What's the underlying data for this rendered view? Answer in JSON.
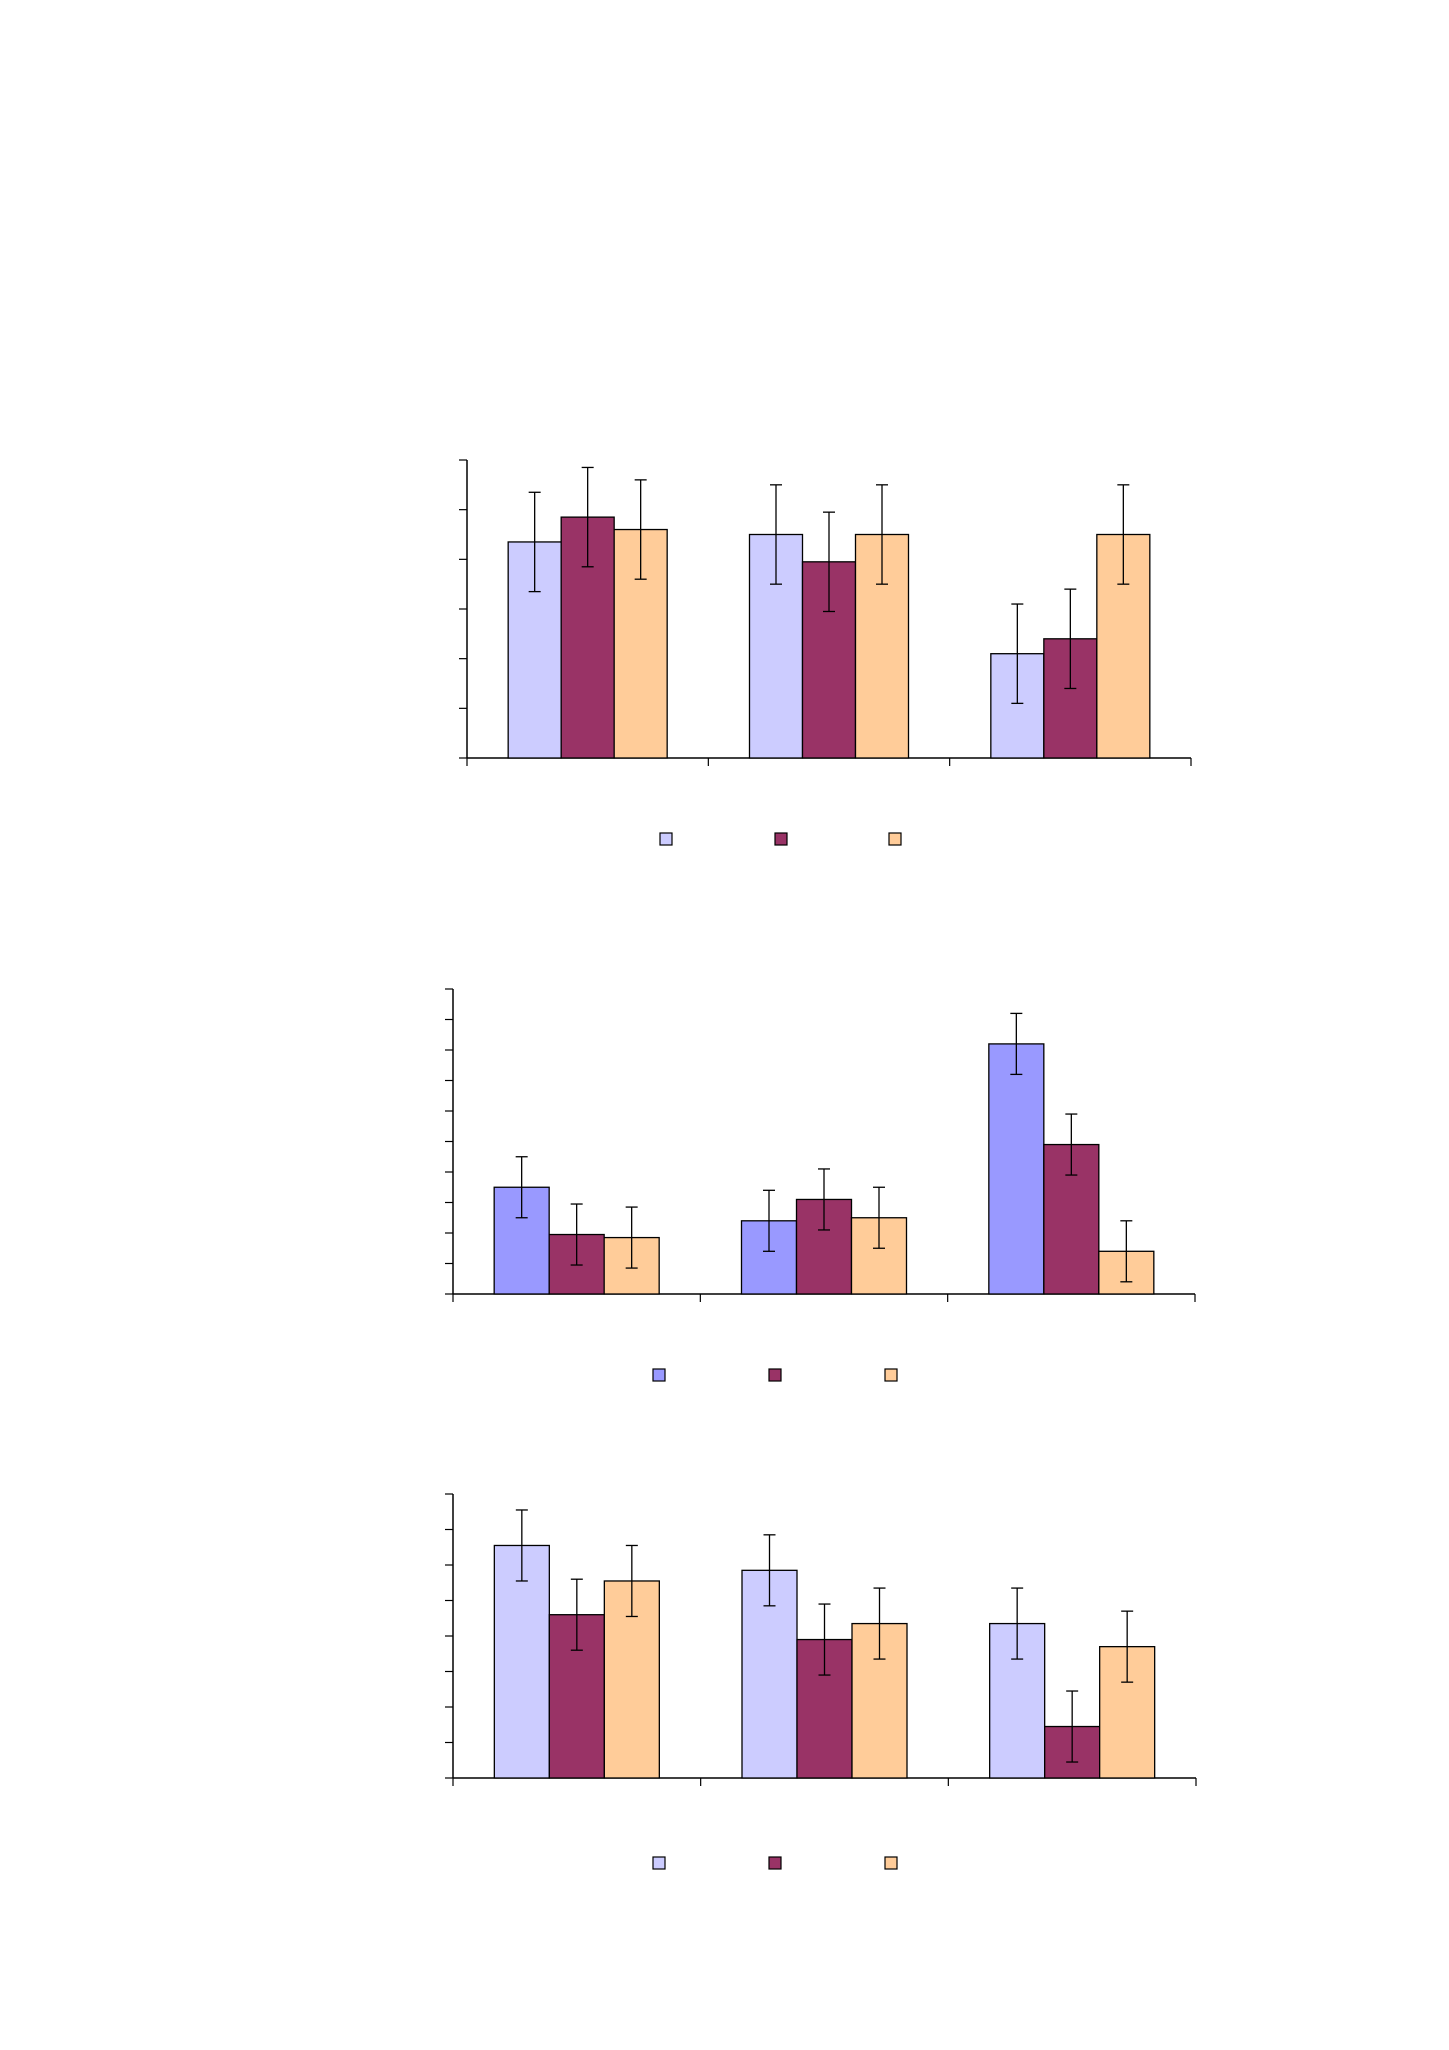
{
  "colors": {
    "lavender": "#CCCCFF",
    "periwinkle": "#9999FF",
    "plum": "#993366",
    "peach": "#FFCC99",
    "axis": "#000000"
  },
  "chart_data": [
    {
      "type": "bar",
      "categories": [
        "",
        "",
        ""
      ],
      "ylim": [
        0,
        6
      ],
      "y_ticks": 7,
      "grid": false,
      "legend": "bottom",
      "series": [
        {
          "color": "#CCCCFF",
          "values": [
            4.35,
            4.5,
            2.1
          ],
          "errors": [
            1.0,
            1.0,
            1.0
          ]
        },
        {
          "color": "#993366",
          "values": [
            4.85,
            3.95,
            2.4
          ],
          "errors": [
            1.0,
            1.0,
            1.0
          ]
        },
        {
          "color": "#FFCC99",
          "values": [
            4.6,
            4.5,
            4.5
          ],
          "errors": [
            1.0,
            1.0,
            1.0
          ]
        }
      ]
    },
    {
      "type": "bar",
      "categories": [
        "",
        "",
        ""
      ],
      "ylim": [
        0,
        10
      ],
      "y_ticks": 11,
      "grid": false,
      "legend": "bottom",
      "series": [
        {
          "color": "#9999FF",
          "values": [
            3.5,
            2.4,
            8.2
          ],
          "errors": [
            1.0,
            1.0,
            1.0
          ]
        },
        {
          "color": "#993366",
          "values": [
            1.95,
            3.1,
            4.9
          ],
          "errors": [
            1.0,
            1.0,
            1.0
          ]
        },
        {
          "color": "#FFCC99",
          "values": [
            1.85,
            2.5,
            1.4
          ],
          "errors": [
            1.0,
            1.0,
            1.0
          ]
        }
      ]
    },
    {
      "type": "bar",
      "categories": [
        "",
        "",
        ""
      ],
      "ylim": [
        0,
        8
      ],
      "y_ticks": 9,
      "grid": false,
      "legend": "bottom",
      "series": [
        {
          "color": "#CCCCFF",
          "values": [
            6.55,
            5.85,
            4.35
          ],
          "errors": [
            1.0,
            1.0,
            1.0
          ]
        },
        {
          "color": "#993366",
          "values": [
            4.6,
            3.9,
            1.45
          ],
          "errors": [
            1.0,
            1.0,
            1.0
          ]
        },
        {
          "color": "#FFCC99",
          "values": [
            5.55,
            4.35,
            3.7
          ],
          "errors": [
            1.0,
            1.0,
            1.0
          ]
        }
      ]
    }
  ]
}
